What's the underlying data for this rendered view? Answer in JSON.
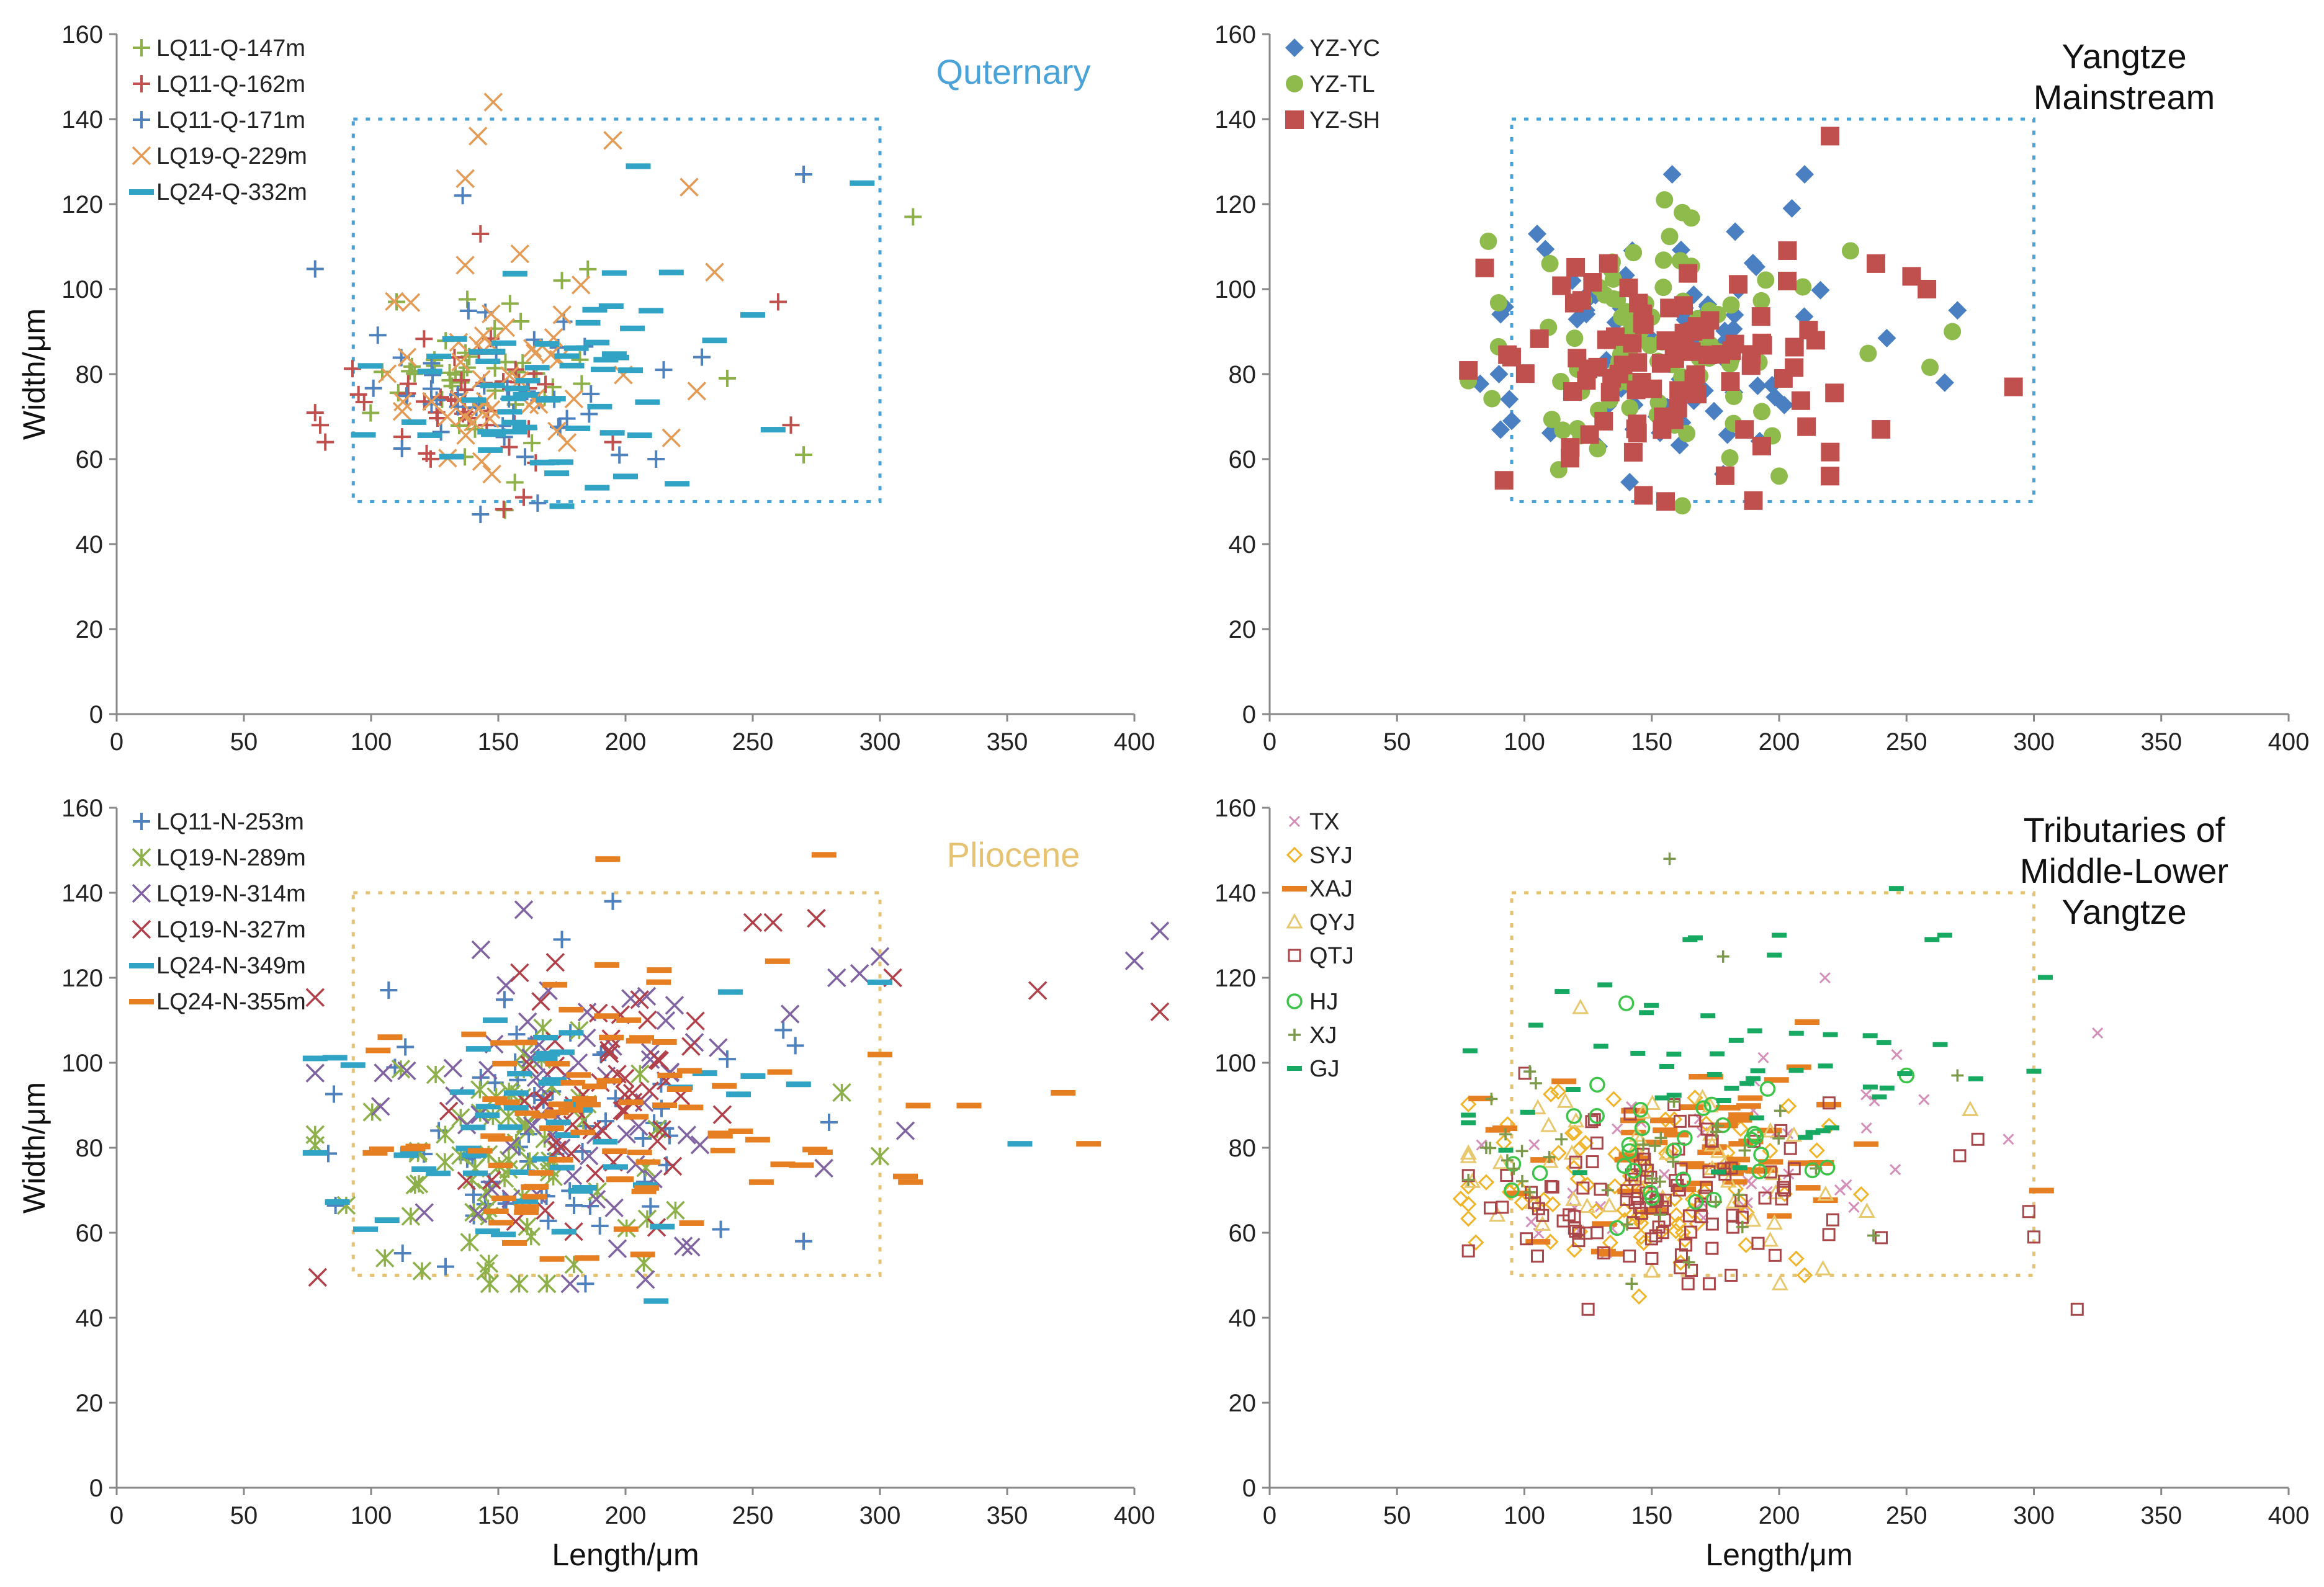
{
  "chart_data": [
    {
      "type": "scatter",
      "id": "quaternary",
      "title": "Quternary",
      "title_color": "#4aa3d8",
      "title_lines": [
        "Quternary"
      ],
      "xlabel": "",
      "ylabel": "Width/μm",
      "xlim": [
        0,
        400
      ],
      "ylim": [
        0,
        160
      ],
      "xticks": [
        0,
        50,
        100,
        150,
        200,
        250,
        300,
        350,
        400
      ],
      "yticks": [
        0,
        20,
        40,
        60,
        80,
        100,
        120,
        140,
        160
      ],
      "reference_box": {
        "x": [
          93,
          300
        ],
        "y": [
          50,
          140
        ],
        "color": "#4aa3d8"
      },
      "series": [
        {
          "name": "LQ11-Q-147m",
          "marker": "plus",
          "color": "#8db04a",
          "seed": 11,
          "n": 42,
          "cx": 140,
          "cy": 78,
          "sx": 22,
          "sy": 11,
          "points": [
            [
              313,
              117
            ],
            [
              270,
              61
            ],
            [
              240,
              79
            ],
            [
              175,
              102
            ],
            [
              110,
              97
            ]
          ]
        },
        {
          "name": "LQ11-Q-162m",
          "marker": "plus",
          "color": "#c0504d",
          "seed": 12,
          "n": 38,
          "cx": 125,
          "cy": 72,
          "sx": 22,
          "sy": 9,
          "points": [
            [
              80,
              68
            ],
            [
              82,
              64
            ],
            [
              260,
              97
            ],
            [
              265,
              68
            ],
            [
              143,
              113
            ],
            [
              160,
              51
            ],
            [
              195,
              64
            ]
          ]
        },
        {
          "name": "LQ11-Q-171m",
          "marker": "plus",
          "color": "#4f81bd",
          "seed": 13,
          "n": 40,
          "cx": 145,
          "cy": 78,
          "sx": 28,
          "sy": 12,
          "points": [
            [
              270,
              127
            ],
            [
              136,
              122
            ],
            [
              143,
              47
            ],
            [
              212,
              60
            ],
            [
              215,
              81
            ],
            [
              230,
              84
            ]
          ]
        },
        {
          "name": "LQ19-Q-229m",
          "marker": "x",
          "color": "#e39b56",
          "seed": 14,
          "n": 45,
          "cx": 145,
          "cy": 80,
          "sx": 25,
          "sy": 13,
          "points": [
            [
              148,
              144
            ],
            [
              142,
              136
            ],
            [
              195,
              135
            ],
            [
              137,
              126
            ],
            [
              225,
              124
            ],
            [
              235,
              104
            ],
            [
              218,
              65
            ],
            [
              228,
              76
            ]
          ]
        },
        {
          "name": "LQ24-Q-332m",
          "marker": "dash",
          "color": "#31a3c4",
          "seed": 15,
          "n": 55,
          "cx": 160,
          "cy": 80,
          "sx": 30,
          "sy": 14,
          "points": [
            [
              293,
              125
            ],
            [
              205,
              129
            ],
            [
              250,
              94
            ],
            [
              258,
              67
            ],
            [
              218,
              104
            ],
            [
              210,
              95
            ],
            [
              175,
              49
            ],
            [
              200,
              56
            ],
            [
              235,
              88
            ]
          ]
        }
      ]
    },
    {
      "type": "scatter",
      "id": "yangtze",
      "title": "Yangtze Mainstream",
      "title_color": "#111111",
      "title_lines": [
        "Yangtze",
        "Mainstream"
      ],
      "xlabel": "",
      "ylabel": "",
      "xlim": [
        0,
        400
      ],
      "ylim": [
        0,
        160
      ],
      "xticks": [
        0,
        50,
        100,
        150,
        200,
        250,
        300,
        350,
        400
      ],
      "yticks": [
        0,
        20,
        40,
        60,
        80,
        100,
        120,
        140,
        160
      ],
      "reference_box": {
        "x": [
          95,
          300
        ],
        "y": [
          50,
          140
        ],
        "color": "#4aa3d8"
      },
      "series": [
        {
          "name": "YZ-YC",
          "marker": "diamond",
          "color": "#4a7fc1",
          "seed": 21,
          "n": 80,
          "cx": 155,
          "cy": 85,
          "sx": 30,
          "sy": 14,
          "points": [
            [
              210,
              127
            ],
            [
              158,
              127
            ],
            [
              205,
              119
            ],
            [
              270,
              95
            ],
            [
              265,
              78
            ],
            [
              90,
              80
            ],
            [
              95,
              69
            ],
            [
              105,
              113
            ]
          ]
        },
        {
          "name": "YZ-TL",
          "marker": "circle",
          "color": "#8fbb4d",
          "seed": 22,
          "n": 95,
          "cx": 150,
          "cy": 88,
          "sx": 26,
          "sy": 14,
          "points": [
            [
              155,
              121
            ],
            [
              162,
              118
            ],
            [
              228,
              109
            ],
            [
              268,
              90
            ],
            [
              162,
              49
            ],
            [
              200,
              56
            ],
            [
              110,
              106
            ]
          ]
        },
        {
          "name": "YZ-SH",
          "marker": "square",
          "color": "#c0504d",
          "seed": 23,
          "n": 90,
          "cx": 155,
          "cy": 82,
          "sx": 30,
          "sy": 13,
          "points": [
            [
              220,
              136
            ],
            [
              292,
              77
            ],
            [
              238,
              106
            ],
            [
              252,
              103
            ],
            [
              258,
              100
            ],
            [
              240,
              67
            ],
            [
              92,
              55
            ],
            [
              95,
              84
            ],
            [
              220,
              56
            ]
          ]
        }
      ]
    },
    {
      "type": "scatter",
      "id": "pliocene",
      "title": "Pliocene",
      "title_color": "#e6c372",
      "title_lines": [
        "Pliocene"
      ],
      "xlabel": "Length/μm",
      "ylabel": "Width/μm",
      "xlim": [
        0,
        400
      ],
      "ylim": [
        0,
        160
      ],
      "xticks": [
        0,
        50,
        100,
        150,
        200,
        250,
        300,
        350,
        400
      ],
      "yticks": [
        0,
        20,
        40,
        60,
        80,
        100,
        120,
        140,
        160
      ],
      "reference_box": {
        "x": [
          93,
          300
        ],
        "y": [
          50,
          140
        ],
        "color": "#e6c372"
      },
      "series": [
        {
          "name": "LQ11-N-253m",
          "marker": "plus",
          "color": "#4f81bd",
          "seed": 31,
          "n": 60,
          "cx": 170,
          "cy": 82,
          "sx": 40,
          "sy": 15,
          "points": [
            [
              195,
              138
            ],
            [
              175,
              129
            ],
            [
              270,
              58
            ],
            [
              280,
              86
            ]
          ]
        },
        {
          "name": "LQ19-N-289m",
          "marker": "asterisk",
          "color": "#8db04a",
          "seed": 32,
          "n": 70,
          "cx": 150,
          "cy": 78,
          "sx": 30,
          "sy": 14,
          "points": [
            [
              120,
              51
            ],
            [
              145,
              51
            ],
            [
              300,
              78
            ],
            [
              285,
              93
            ]
          ]
        },
        {
          "name": "LQ19-N-314m",
          "marker": "x",
          "color": "#8064a2",
          "seed": 33,
          "n": 65,
          "cx": 180,
          "cy": 90,
          "sx": 40,
          "sy": 16,
          "points": [
            [
              400,
              124
            ],
            [
              410,
              131
            ],
            [
              160,
              136
            ],
            [
              283,
              120
            ],
            [
              292,
              121
            ],
            [
              300,
              125
            ],
            [
              310,
              84
            ]
          ]
        },
        {
          "name": "LQ19-N-327m",
          "marker": "x",
          "color": "#b0404a",
          "seed": 34,
          "n": 55,
          "cx": 185,
          "cy": 88,
          "sx": 40,
          "sy": 17,
          "points": [
            [
              362,
              117
            ],
            [
              410,
              112
            ],
            [
              275,
              134
            ],
            [
              258,
              133
            ],
            [
              250,
              133
            ],
            [
              305,
              120
            ]
          ]
        },
        {
          "name": "LQ24-N-349m",
          "marker": "dash",
          "color": "#31a3c4",
          "seed": 35,
          "n": 55,
          "cx": 165,
          "cy": 82,
          "sx": 40,
          "sy": 15,
          "points": [
            [
              355,
              81
            ],
            [
              212,
              44
            ],
            [
              300,
              119
            ],
            [
              268,
              95
            ]
          ]
        },
        {
          "name": "LQ24-N-355m",
          "marker": "dash",
          "color": "#e67e22",
          "seed": 36,
          "n": 85,
          "cx": 185,
          "cy": 88,
          "sx": 40,
          "sy": 16,
          "points": [
            [
              193,
              148
            ],
            [
              278,
              149
            ],
            [
              335,
              90
            ],
            [
              372,
              93
            ],
            [
              382,
              81
            ],
            [
              312,
              72
            ],
            [
              300,
              102
            ],
            [
              315,
              90
            ]
          ]
        }
      ]
    },
    {
      "type": "scatter",
      "id": "tributaries",
      "title": "Tributaries of Middle-Lower Yangtze",
      "title_color": "#111111",
      "title_lines": [
        "Tributaries of",
        "Middle-Lower",
        "Yangtze"
      ],
      "xlabel": "Length/μm",
      "ylabel": "",
      "xlim": [
        0,
        400
      ],
      "ylim": [
        0,
        160
      ],
      "xticks": [
        0,
        50,
        100,
        150,
        200,
        250,
        300,
        350,
        400
      ],
      "yticks": [
        0,
        20,
        40,
        60,
        80,
        100,
        120,
        140,
        160
      ],
      "reference_box": {
        "x": [
          95,
          300
        ],
        "y": [
          50,
          140
        ],
        "color": "#e6c372"
      },
      "series": [
        {
          "name": "TX",
          "marker": "x-small",
          "color": "#d48fb8",
          "seed": 41,
          "n": 40,
          "cx": 170,
          "cy": 75,
          "sx": 45,
          "sy": 11,
          "points": [
            [
              325,
              107
            ],
            [
              218,
              120
            ],
            [
              290,
              82
            ]
          ]
        },
        {
          "name": "SYJ",
          "marker": "diamond-open",
          "color": "#f0b429",
          "seed": 42,
          "n": 80,
          "cx": 140,
          "cy": 72,
          "sx": 30,
          "sy": 11,
          "points": [
            [
              75,
              68
            ],
            [
              145,
              45
            ],
            [
              210,
              50
            ]
          ]
        },
        {
          "name": "XAJ",
          "marker": "dash",
          "color": "#e67e22",
          "seed": 43,
          "n": 60,
          "cx": 160,
          "cy": 78,
          "sx": 40,
          "sy": 12,
          "points": [
            [
              303,
              70
            ]
          ]
        },
        {
          "name": "QYJ",
          "marker": "triangle-open",
          "color": "#e8c86e",
          "seed": 44,
          "n": 45,
          "cx": 150,
          "cy": 72,
          "sx": 40,
          "sy": 12,
          "points": [
            [
              122,
              113
            ],
            [
              275,
              89
            ]
          ]
        },
        {
          "name": "QTJ",
          "marker": "square-open",
          "color": "#a8464a",
          "seed": 45,
          "n": 110,
          "cx": 150,
          "cy": 70,
          "sx": 35,
          "sy": 10,
          "points": [
            [
              317,
              42
            ],
            [
              125,
              42
            ],
            [
              300,
              59
            ],
            [
              298,
              65
            ],
            [
              278,
              82
            ]
          ]
        },
        {
          "name": "HJ",
          "marker": "circle-open",
          "color": "#3ec44a",
          "seed": 46,
          "n": 30,
          "cx": 160,
          "cy": 80,
          "sx": 30,
          "sy": 10,
          "points": [
            [
              140,
              114
            ],
            [
              250,
              97
            ],
            [
              95,
              70
            ]
          ]
        },
        {
          "name": "XJ",
          "marker": "plus-small",
          "color": "#7c9a4a",
          "seed": 47,
          "n": 35,
          "cx": 150,
          "cy": 75,
          "sx": 40,
          "sy": 12,
          "points": [
            [
              157,
              148
            ],
            [
              178,
              125
            ],
            [
              85,
              80
            ],
            [
              270,
              97
            ]
          ]
        },
        {
          "name": "GJ",
          "marker": "dash-small",
          "color": "#17a862",
          "seed": 48,
          "n": 50,
          "cx": 175,
          "cy": 100,
          "sx": 40,
          "sy": 15,
          "points": [
            [
              246,
              141
            ],
            [
              260,
              129
            ],
            [
              265,
              130
            ],
            [
              165,
              129
            ],
            [
              200,
              130
            ],
            [
              300,
              98
            ]
          ]
        }
      ]
    }
  ]
}
